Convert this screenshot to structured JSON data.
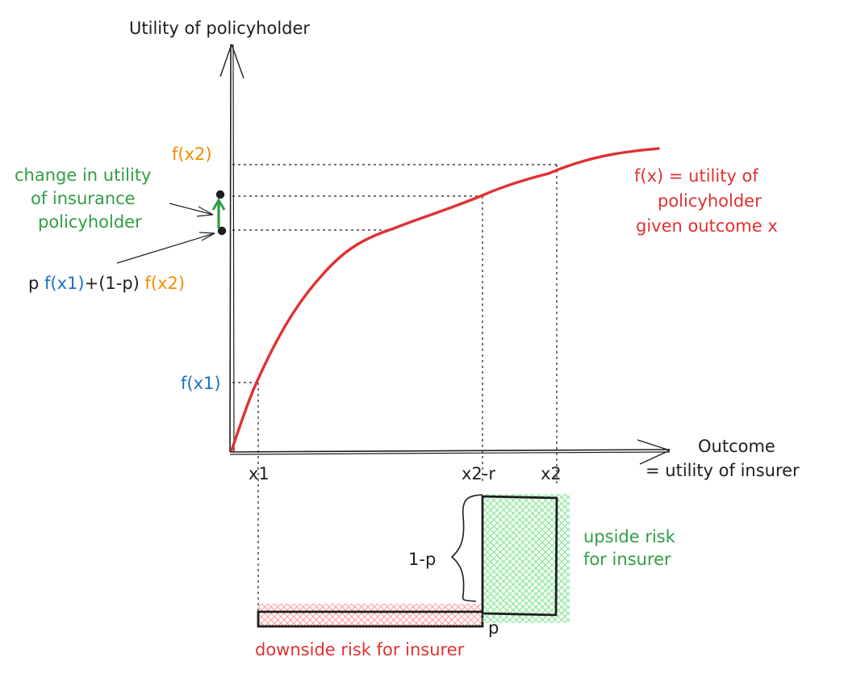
{
  "labels": {
    "y_axis": "Utility of policyholder",
    "x_axis_line1": "Outcome",
    "x_axis_line2": "= utility of insurer",
    "fx2": "f(x2)",
    "fx1": "f(x1)",
    "change_line1": "change in utility",
    "change_line2": "of insurance",
    "change_line3": "policyholder",
    "expected_p": "p ",
    "expected_fx1": "f(x1)",
    "expected_mid": "+(1-p) ",
    "expected_fx2": "f(x2)",
    "curve_line1": "f(x) = utility of",
    "curve_line2": "policyholder",
    "curve_line3": "given outcome x",
    "tick_x1": "x1",
    "tick_x2r": "x2-r",
    "tick_x2": "x2",
    "brace_label": "1-p",
    "p_label": "p",
    "upside_line1": "upside risk",
    "upside_line2": "for insurer",
    "downside": "downside risk for insurer"
  },
  "colors": {
    "ink": "#1e1e1e",
    "curve": "#e03131",
    "blue": "#1971c2",
    "orange": "#f08c00",
    "green": "#2f9e44",
    "green_fill": "#b2f2bb",
    "red_fill": "#ffc9c9"
  }
}
